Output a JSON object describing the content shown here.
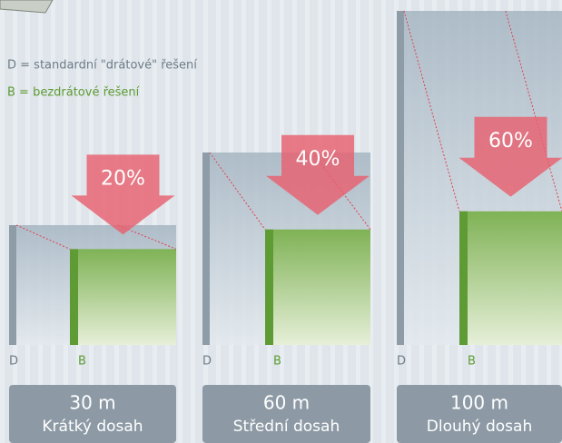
{
  "chart_data": {
    "type": "reduction",
    "legend": [
      "D = standardní \"drátové\" řešení",
      "B = bezdrátové řešení"
    ],
    "series": [
      {
        "name": "D",
        "color": "#8e9ca8"
      },
      {
        "name": "B",
        "color": "#5e9b35"
      }
    ],
    "distances": [
      "30 m",
      "60 m",
      "100 m"
    ],
    "categories": [
      "Krátký dosah",
      "Střední dosah",
      "Dlouhý dosah"
    ],
    "values": [
      20,
      40,
      60
    ],
    "value_labels": [
      "20%",
      "40%",
      "60%"
    ],
    "arrow_color": "#e8606f"
  }
}
